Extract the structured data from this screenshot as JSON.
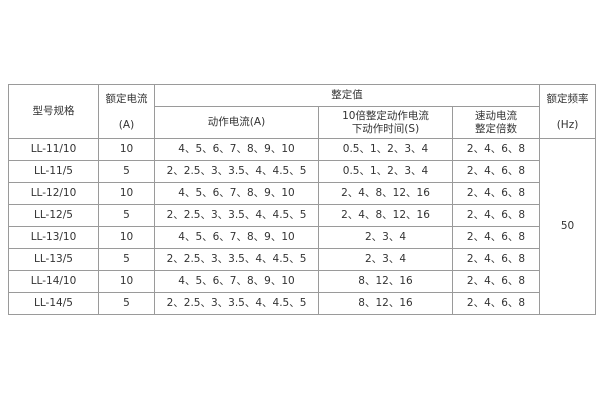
{
  "table": {
    "headers": {
      "model": "型号规格",
      "rated_current": [
        "额定电流",
        "(A)"
      ],
      "setting_group": "整定值",
      "action_current": "动作电流(A)",
      "action_time": [
        "10倍整定动作电流",
        "下动作时间(S)"
      ],
      "quick_multiple": [
        "速动电流",
        "整定倍数"
      ],
      "rated_freq": [
        "额定频率",
        "(Hz)"
      ]
    },
    "rows": [
      {
        "model": "LL-11/10",
        "rated": "10",
        "current": "4、5、6、7、8、9、10",
        "time": "0.5、1、2、3、4",
        "multiple": "2、4、6、8"
      },
      {
        "model": "LL-11/5",
        "rated": "5",
        "current": "2、2.5、3、3.5、4、4.5、5",
        "time": "0.5、1、2、3、4",
        "multiple": "2、4、6、8"
      },
      {
        "model": "LL-12/10",
        "rated": "10",
        "current": "4、5、6、7、8、9、10",
        "time": "2、4、8、12、16",
        "multiple": "2、4、6、8"
      },
      {
        "model": "LL-12/5",
        "rated": "5",
        "current": "2、2.5、3、3.5、4、4.5、5",
        "time": "2、4、8、12、16",
        "multiple": "2、4、6、8"
      },
      {
        "model": "LL-13/10",
        "rated": "10",
        "current": "4、5、6、7、8、9、10",
        "time": "2、3、4",
        "multiple": "2、4、6、8"
      },
      {
        "model": "LL-13/5",
        "rated": "5",
        "current": "2、2.5、3、3.5、4、4.5、5",
        "time": "2、3、4",
        "multiple": "2、4、6、8"
      },
      {
        "model": "LL-14/10",
        "rated": "10",
        "current": "4、5、6、7、8、9、10",
        "time": "8、12、16",
        "multiple": "2、4、6、8"
      },
      {
        "model": "LL-14/5",
        "rated": "5",
        "current": "2、2.5、3、3.5、4、4.5、5",
        "time": "8、12、16",
        "multiple": "2、4、6、8"
      }
    ],
    "frequency": "50"
  }
}
